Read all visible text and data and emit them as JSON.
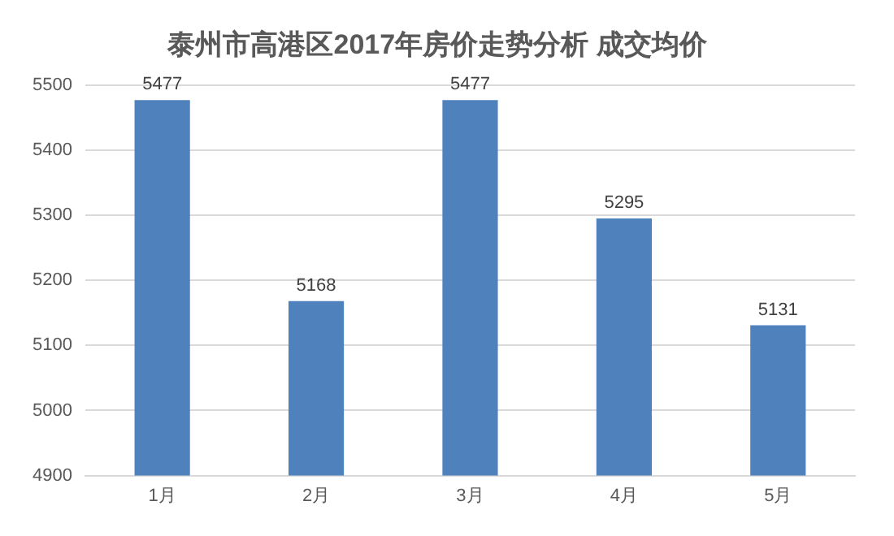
{
  "chart_data": {
    "type": "bar",
    "title": "泰州市高港区2017年房价走势分析 成交均价",
    "categories": [
      "1月",
      "2月",
      "3月",
      "4月",
      "5月"
    ],
    "values": [
      5477,
      5168,
      5477,
      5295,
      5131
    ],
    "color": "#4f81bd",
    "ylim": [
      4900,
      5500
    ],
    "yticks": [
      4900,
      5000,
      5100,
      5200,
      5300,
      5400,
      5500
    ],
    "grid": "y",
    "data_labels": true,
    "legend": false
  }
}
